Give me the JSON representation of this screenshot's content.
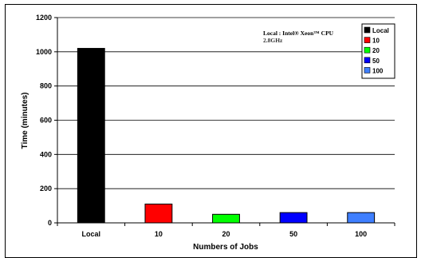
{
  "chart_data": {
    "type": "bar",
    "categories": [
      "Local",
      "10",
      "20",
      "50",
      "100"
    ],
    "values": [
      1020,
      110,
      50,
      60,
      60
    ],
    "colors": [
      "#000000",
      "#ff0000",
      "#00ff00",
      "#0000ff",
      "#3f7fff"
    ],
    "xlabel": "Numbers of Jobs",
    "ylabel": "Time (minutes)",
    "ylim": [
      0,
      1200
    ],
    "yticks": [
      0,
      200,
      400,
      600,
      800,
      1000,
      1200
    ],
    "grid": true,
    "legend_position": "top-right",
    "legend": [
      "Local",
      "10",
      "20",
      "50",
      "100"
    ],
    "annotation_line1": "Local : Intel® Xeon™ CPU",
    "annotation_line2": "2.8GHz"
  }
}
